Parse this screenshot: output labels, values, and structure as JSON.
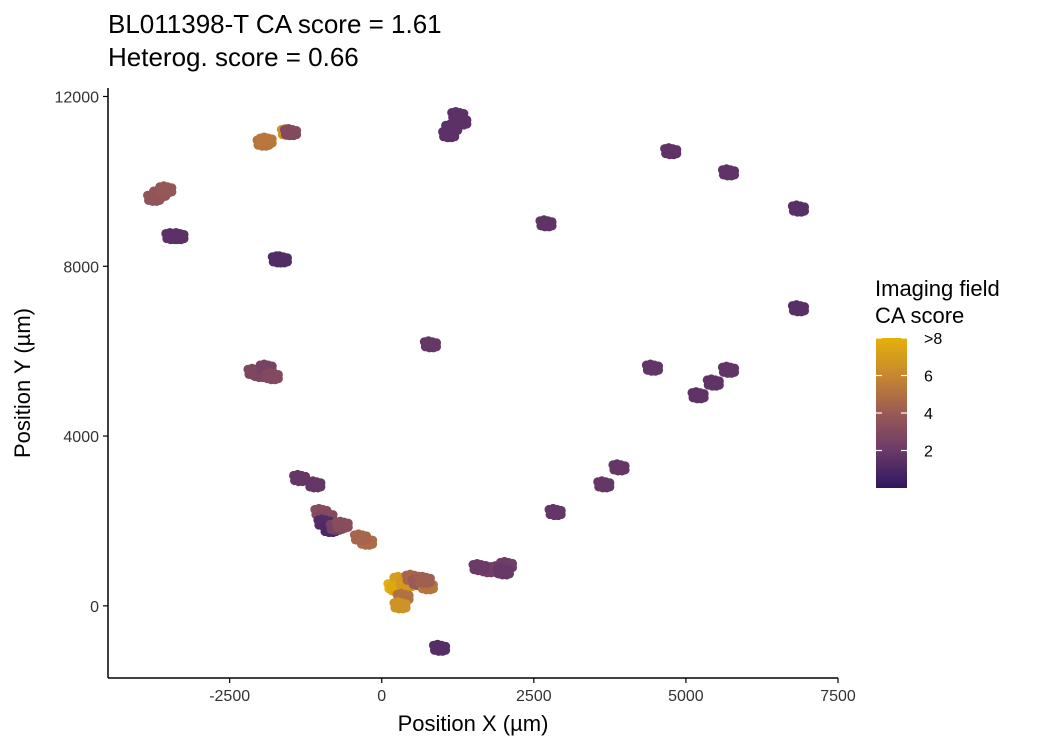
{
  "chart_data": {
    "type": "scatter",
    "title_line1": "BL011398-T  CA score = 1.61",
    "title_line2": "Heterog. score = 0.66",
    "xlabel": "Position X (µm)",
    "ylabel": "Position Y (µm)",
    "xlim": [
      -4500,
      7500
    ],
    "ylim": [
      -1700,
      12200
    ],
    "xticks": [
      -2500,
      0,
      2500,
      5000,
      7500
    ],
    "yticks": [
      0,
      4000,
      8000,
      12000
    ],
    "grid": false,
    "legend": {
      "title_line1": "Imaging field",
      "title_line2": "CA score",
      "position": "right",
      "ticks": [
        {
          "value": 2,
          "label": "2"
        },
        {
          "value": 4,
          "label": "4"
        },
        {
          "value": 6,
          "label": "6"
        },
        {
          "value": 8,
          "label": ">8"
        }
      ],
      "range": [
        0,
        8
      ],
      "colors": [
        "#2d1760",
        "#6b3a68",
        "#9b5a55",
        "#c7872f",
        "#e5b10a"
      ]
    },
    "points": [
      {
        "x": -3750,
        "y": 9600,
        "v": 3.6
      },
      {
        "x": -3650,
        "y": 9700,
        "v": 3.7
      },
      {
        "x": -3550,
        "y": 9800,
        "v": 3.8
      },
      {
        "x": -3450,
        "y": 8700,
        "v": 1.5
      },
      {
        "x": -3350,
        "y": 8700,
        "v": 1.5
      },
      {
        "x": -1950,
        "y": 10900,
        "v": 5.2
      },
      {
        "x": -1900,
        "y": 10950,
        "v": 5.3
      },
      {
        "x": -1550,
        "y": 11150,
        "v": 6.5
      },
      {
        "x": -1500,
        "y": 11150,
        "v": 3.0
      },
      {
        "x": -1700,
        "y": 8150,
        "v": 1.2
      },
      {
        "x": -1650,
        "y": 8150,
        "v": 1.2
      },
      {
        "x": -2100,
        "y": 5500,
        "v": 2.8
      },
      {
        "x": -2000,
        "y": 5450,
        "v": 2.8
      },
      {
        "x": -1900,
        "y": 5600,
        "v": 2.5
      },
      {
        "x": -1800,
        "y": 5400,
        "v": 3.0
      },
      {
        "x": 800,
        "y": 6150,
        "v": 1.8
      },
      {
        "x": 1100,
        "y": 11100,
        "v": 1.5
      },
      {
        "x": 1150,
        "y": 11250,
        "v": 1.5
      },
      {
        "x": 1300,
        "y": 11400,
        "v": 1.5
      },
      {
        "x": 1250,
        "y": 11550,
        "v": 1.5
      },
      {
        "x": 2700,
        "y": 9000,
        "v": 1.6
      },
      {
        "x": 4750,
        "y": 10700,
        "v": 1.6
      },
      {
        "x": 5700,
        "y": 10200,
        "v": 1.6
      },
      {
        "x": 6850,
        "y": 9350,
        "v": 1.4
      },
      {
        "x": 6850,
        "y": 7000,
        "v": 1.4
      },
      {
        "x": 4450,
        "y": 5600,
        "v": 1.7
      },
      {
        "x": 5700,
        "y": 5550,
        "v": 1.7
      },
      {
        "x": 5450,
        "y": 5250,
        "v": 1.6
      },
      {
        "x": 5200,
        "y": 4950,
        "v": 1.6
      },
      {
        "x": 3900,
        "y": 3250,
        "v": 1.8
      },
      {
        "x": 3650,
        "y": 2850,
        "v": 1.8
      },
      {
        "x": 2850,
        "y": 2200,
        "v": 1.8
      },
      {
        "x": 2050,
        "y": 950,
        "v": 2.2
      },
      {
        "x": 1900,
        "y": 850,
        "v": 2.0
      },
      {
        "x": 1750,
        "y": 850,
        "v": 2.3
      },
      {
        "x": 1600,
        "y": 900,
        "v": 2.0
      },
      {
        "x": 2000,
        "y": 800,
        "v": 1.9
      },
      {
        "x": -1350,
        "y": 3000,
        "v": 1.8
      },
      {
        "x": -1100,
        "y": 2850,
        "v": 1.8
      },
      {
        "x": -1000,
        "y": 2200,
        "v": 3.2
      },
      {
        "x": -900,
        "y": 2100,
        "v": 3.0
      },
      {
        "x": -950,
        "y": 1950,
        "v": 1.2
      },
      {
        "x": -850,
        "y": 1800,
        "v": 1.0
      },
      {
        "x": -750,
        "y": 1850,
        "v": 2.5
      },
      {
        "x": -650,
        "y": 1900,
        "v": 3.2
      },
      {
        "x": -250,
        "y": 1500,
        "v": 4.8
      },
      {
        "x": -350,
        "y": 1600,
        "v": 4.5
      },
      {
        "x": 200,
        "y": 450,
        "v": 8.2
      },
      {
        "x": 300,
        "y": 600,
        "v": 7.0
      },
      {
        "x": 250,
        "y": 400,
        "v": 7.5
      },
      {
        "x": 400,
        "y": 500,
        "v": 6.8
      },
      {
        "x": 350,
        "y": 200,
        "v": 5.0
      },
      {
        "x": 300,
        "y": 0,
        "v": 6.5
      },
      {
        "x": 500,
        "y": 650,
        "v": 4.5
      },
      {
        "x": 600,
        "y": 550,
        "v": 4.0
      },
      {
        "x": 750,
        "y": 450,
        "v": 5.2
      },
      {
        "x": 700,
        "y": 600,
        "v": 4.2
      },
      {
        "x": 950,
        "y": -1000,
        "v": 1.3
      }
    ]
  }
}
